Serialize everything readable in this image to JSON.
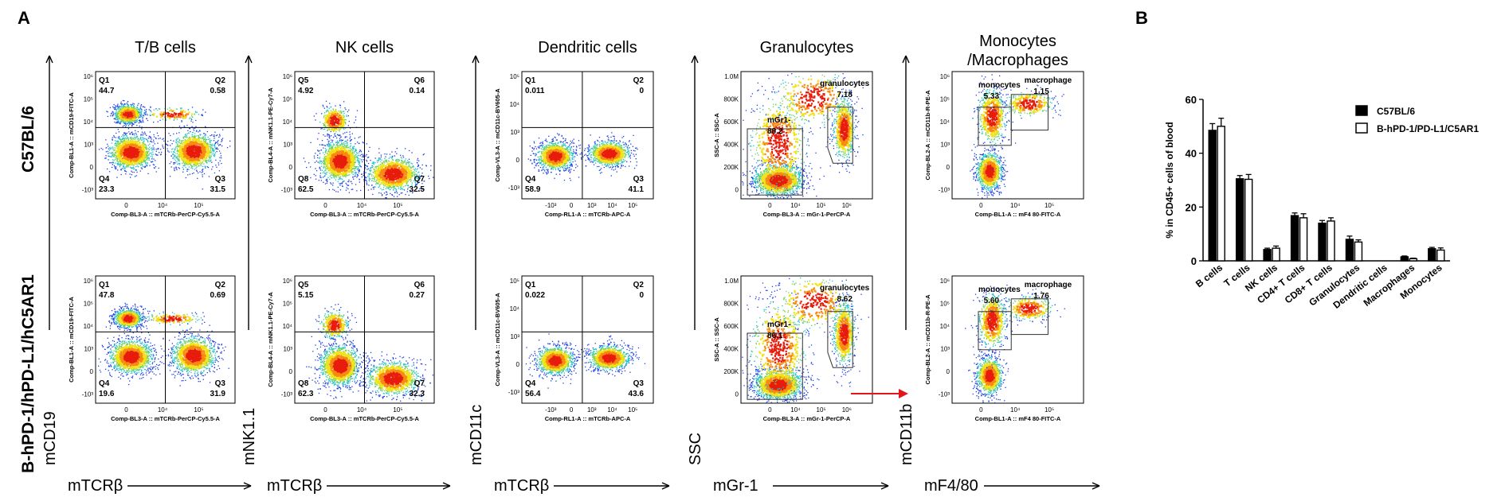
{
  "panel_labels": {
    "a": "A",
    "b": "B"
  },
  "panel_a": {
    "row_labels": [
      "C57BL/6",
      "B-hPD-1/hPD-L1/hC5AR1"
    ],
    "columns": [
      {
        "title": "T/B cells",
        "x_marker": "mTCRβ",
        "y_marker": "mCD19",
        "x_axis_label": "Comp-BL3-A :: mTCRb-PerCP-Cy5.5-A",
        "y_axis_label": "Comp-BL1-A :: mCD19-FITC-A",
        "x_ticks": [
          "0",
          "10⁴",
          "10⁵"
        ],
        "y_ticks": [
          "10⁶",
          "10⁵",
          "10⁴",
          "10³",
          "0",
          "-10³"
        ],
        "gate_type": "quadrant",
        "plots": [
          {
            "quadrants": [
              {
                "name": "Q1",
                "value": "44.7"
              },
              {
                "name": "Q2",
                "value": "0.58"
              },
              {
                "name": "Q3",
                "value": "31.5"
              },
              {
                "name": "Q4",
                "value": "23.3"
              }
            ]
          },
          {
            "quadrants": [
              {
                "name": "Q1",
                "value": "47.8"
              },
              {
                "name": "Q2",
                "value": "0.69"
              },
              {
                "name": "Q3",
                "value": "31.9"
              },
              {
                "name": "Q4",
                "value": "19.6"
              }
            ]
          }
        ]
      },
      {
        "title": "NK cells",
        "x_marker": "mTCRβ",
        "y_marker": "mNK1.1",
        "x_axis_label": "Comp-BL3-A :: mTCRb-PerCP-Cy5.5-A",
        "y_axis_label": "Comp-BL4-A :: mNK1.1-PE-Cy7-A",
        "x_ticks": [
          "0",
          "10⁴",
          "10⁵"
        ],
        "y_ticks": [
          "10⁶",
          "10⁵",
          "10⁴",
          "10³",
          "0",
          "-10³"
        ],
        "gate_type": "quadrant",
        "plots": [
          {
            "quadrants": [
              {
                "name": "Q5",
                "value": "4.92"
              },
              {
                "name": "Q6",
                "value": "0.14"
              },
              {
                "name": "Q7",
                "value": "32.5"
              },
              {
                "name": "Q8",
                "value": "62.5"
              }
            ]
          },
          {
            "quadrants": [
              {
                "name": "Q5",
                "value": "5.15"
              },
              {
                "name": "Q6",
                "value": "0.27"
              },
              {
                "name": "Q7",
                "value": "32.3"
              },
              {
                "name": "Q8",
                "value": "62.3"
              }
            ]
          }
        ]
      },
      {
        "title": "Dendritic cells",
        "x_marker": "mTCRβ",
        "y_marker": "mCD11c",
        "x_axis_label": "Comp-RL1-A :: mTCRb-APC-A",
        "y_axis_label": "Comp-VL3-A :: mCD11c-BV605-A",
        "x_ticks": [
          "-10³",
          "0",
          "10³",
          "10⁴",
          "10⁵"
        ],
        "y_ticks": [
          "10⁵",
          "10⁴",
          "10³",
          "0",
          "-10³"
        ],
        "gate_type": "quadrant",
        "plots": [
          {
            "quadrants": [
              {
                "name": "Q1",
                "value": "0.011"
              },
              {
                "name": "Q2",
                "value": "0"
              },
              {
                "name": "Q3",
                "value": "41.1"
              },
              {
                "name": "Q4",
                "value": "58.9"
              }
            ]
          },
          {
            "quadrants": [
              {
                "name": "Q1",
                "value": "0.022"
              },
              {
                "name": "Q2",
                "value": "0"
              },
              {
                "name": "Q3",
                "value": "43.6"
              },
              {
                "name": "Q4",
                "value": "56.4"
              }
            ]
          }
        ]
      },
      {
        "title": "Granulocytes",
        "x_marker": "mGr-1",
        "y_marker": "SSC",
        "x_axis_label": "Comp-BL3-A :: mGr-1-PerCP-A",
        "y_axis_label": "SSC-A :: SSC-A",
        "x_ticks": [
          "0",
          "10⁴",
          "10⁵",
          "10⁶"
        ],
        "y_ticks": [
          "1.0M",
          "800K",
          "600K",
          "400K",
          "200K",
          "0"
        ],
        "gate_type": "granulocytes",
        "plots": [
          {
            "gates": [
              {
                "name": "granulocytes",
                "value": "7.18"
              },
              {
                "name": "mGr1-",
                "value": "88.2"
              }
            ]
          },
          {
            "gates": [
              {
                "name": "granulocytes",
                "value": "8.62"
              },
              {
                "name": "mGr1-",
                "value": "86.1"
              }
            ]
          }
        ]
      },
      {
        "title": "Monocytes /Macrophages",
        "x_marker": "mF4/80",
        "y_marker": "mCD11b",
        "x_axis_label": "Comp-BL1-A :: mF4 80-FITC-A",
        "y_axis_label": "Comp-BL2-A :: mCD11b-R-PE-A",
        "x_ticks": [
          "0",
          "10⁴",
          "10⁵"
        ],
        "y_ticks": [
          "10⁶",
          "10⁵",
          "10⁴",
          "10³",
          "0",
          "-10³"
        ],
        "gate_type": "monomac",
        "plots": [
          {
            "gates": [
              {
                "name": "monocytes",
                "value": "5.33"
              },
              {
                "name": "macrophage",
                "value": "1.15"
              }
            ]
          },
          {
            "gates": [
              {
                "name": "monocytes",
                "value": "5.60"
              },
              {
                "name": "macrophage",
                "value": "1.76"
              }
            ]
          }
        ]
      }
    ]
  },
  "chart_data": {
    "type": "bar",
    "ylabel": "% in CD45+ cells of blood",
    "ylim": [
      0,
      60
    ],
    "yticks": [
      "0",
      "20",
      "40",
      "60"
    ],
    "categories": [
      "B cells",
      "T cells",
      "NK cells",
      "CD4+ T cells",
      "CD8+ T cells",
      "Granulocytes",
      "Dendritic cells",
      "Macrophages",
      "Monocytes"
    ],
    "series": [
      {
        "name": "C57BL/6",
        "values": [
          48.5,
          30.5,
          4.2,
          16.8,
          14.0,
          8.0,
          0.0,
          1.5,
          4.5
        ],
        "errors": [
          2.5,
          1.2,
          0.5,
          1.0,
          1.0,
          1.2,
          0.0,
          0.3,
          0.5
        ],
        "fill": "#000000"
      },
      {
        "name": "B-hPD-1/PD-L1/C5AR1",
        "values": [
          50.0,
          30.3,
          4.7,
          16.0,
          14.8,
          7.0,
          0.0,
          0.8,
          4.0
        ],
        "errors": [
          3.0,
          1.8,
          0.8,
          1.5,
          1.2,
          0.8,
          0.0,
          0.2,
          0.8
        ],
        "fill": "#ffffff"
      }
    ],
    "legend": "top-right",
    "grid": false
  }
}
